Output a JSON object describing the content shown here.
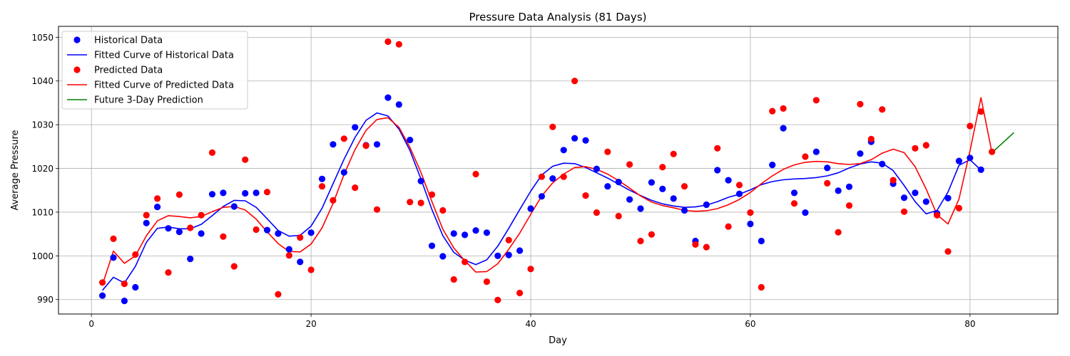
{
  "chart_data": {
    "type": "line",
    "title": "Pressure Data Analysis (81 Days)",
    "xlabel": "Day",
    "ylabel": "Average Pressure",
    "xlim": [
      -3,
      88
    ],
    "ylim": [
      986.7,
      1052.5
    ],
    "xticks": [
      0,
      20,
      40,
      60,
      80
    ],
    "yticks": [
      990,
      1000,
      1010,
      1020,
      1030,
      1040,
      1050
    ],
    "grid": true,
    "legend_position": "top-left",
    "legend": [
      {
        "label": "Historical Data",
        "kind": "marker",
        "color": "#0000ff"
      },
      {
        "label": "Fitted Curve of Historical Data",
        "kind": "line",
        "color": "#0000ff"
      },
      {
        "label": "Predicted Data",
        "kind": "marker",
        "color": "#ff0000"
      },
      {
        "label": "Fitted Curve of Predicted Data",
        "kind": "line",
        "color": "#ff0000"
      },
      {
        "label": "Future 3-Day Prediction",
        "kind": "line",
        "color": "#008000"
      }
    ],
    "series": [
      {
        "name": "Historical Data",
        "kind": "scatter",
        "color": "#0000ff",
        "x": [
          1,
          2,
          3,
          4,
          5,
          6,
          7,
          8,
          9,
          10,
          11,
          12,
          13,
          14,
          15,
          16,
          17,
          18,
          19,
          20,
          21,
          22,
          23,
          24,
          25,
          26,
          27,
          28,
          29,
          30,
          31,
          32,
          33,
          34,
          35,
          36,
          37,
          38,
          39,
          40,
          41,
          42,
          43,
          44,
          45,
          46,
          47,
          48,
          49,
          50,
          51,
          52,
          53,
          54,
          55,
          56,
          57,
          58,
          59,
          60,
          61,
          62,
          63,
          64,
          65,
          66,
          67,
          68,
          69,
          70,
          71,
          72,
          73,
          74,
          75,
          76,
          77,
          78,
          79,
          80,
          81
        ],
        "y": [
          990.9,
          999.6,
          989.7,
          992.8,
          1007.5,
          1011.2,
          1006.3,
          1005.5,
          999.3,
          1005.1,
          1014.1,
          1014.4,
          1011.3,
          1014.3,
          1014.4,
          1005.9,
          1005.1,
          1001.5,
          998.6,
          1005.3,
          1017.6,
          1025.5,
          1019.1,
          1029.4,
          1025.3,
          1025.5,
          1036.2,
          1034.6,
          1026.5,
          1017.1,
          1002.3,
          999.9,
          1005.1,
          1004.8,
          1005.8,
          1005.3,
          1000.0,
          1000.2,
          1001.2,
          1010.8,
          1013.6,
          1017.7,
          1024.2,
          1026.9,
          1026.4,
          1019.9,
          1015.9,
          1016.9,
          1012.9,
          1010.8,
          1016.8,
          1015.3,
          1013.1,
          1010.4,
          1003.4,
          1011.7,
          1019.6,
          1017.3,
          1014.2,
          1007.3,
          1003.4,
          1020.8,
          1029.2,
          1014.4,
          1009.9,
          1023.8,
          1020.1,
          1014.9,
          1015.8,
          1023.4,
          1026.1,
          1021.0,
          1016.5,
          1013.3,
          1014.4,
          1012.4,
          1009.7,
          1013.2,
          1021.7,
          1022.4,
          1019.7
        ]
      },
      {
        "name": "Fitted Curve of Historical Data",
        "kind": "line",
        "color": "#0000ff",
        "x": [
          1,
          2,
          3,
          4,
          5,
          6,
          7,
          8,
          9,
          10,
          11,
          12,
          13,
          14,
          15,
          16,
          17,
          18,
          19,
          20,
          21,
          22,
          23,
          24,
          25,
          26,
          27,
          28,
          29,
          30,
          31,
          32,
          33,
          34,
          35,
          36,
          37,
          38,
          39,
          40,
          41,
          42,
          43,
          44,
          45,
          46,
          47,
          48,
          49,
          50,
          51,
          52,
          53,
          54,
          55,
          56,
          57,
          58,
          59,
          60,
          61,
          62,
          63,
          64,
          65,
          66,
          67,
          68,
          69,
          70,
          71,
          72,
          73,
          74,
          75,
          76,
          77,
          78,
          79,
          80,
          81
        ],
        "y": [
          992.1,
          995.1,
          993.8,
          997.6,
          1003.1,
          1006.3,
          1006.6,
          1006.2,
          1006.2,
          1007.2,
          1009.2,
          1011.3,
          1012.7,
          1012.6,
          1011.1,
          1008.5,
          1005.8,
          1004.5,
          1004.7,
          1006.8,
          1010.9,
          1016.5,
          1022.1,
          1027.1,
          1031.0,
          1032.7,
          1032.0,
          1029.0,
          1024.1,
          1017.6,
          1010.6,
          1004.6,
          1000.8,
          999.0,
          998.0,
          999.1,
          1002.2,
          1006.3,
          1010.6,
          1014.8,
          1018.5,
          1020.5,
          1021.2,
          1021.1,
          1020.2,
          1019.0,
          1017.8,
          1016.4,
          1015.0,
          1013.8,
          1012.7,
          1011.9,
          1011.4,
          1011.1,
          1011.2,
          1011.6,
          1012.4,
          1013.4,
          1014.1,
          1015.1,
          1016.3,
          1017.0,
          1017.4,
          1017.6,
          1017.7,
          1017.9,
          1018.3,
          1019.0,
          1020.1,
          1021.0,
          1021.5,
          1021.2,
          1019.5,
          1016.1,
          1012.4,
          1009.6,
          1010.4,
          1014.6,
          1020.7,
          1022.0,
          1019.6
        ]
      },
      {
        "name": "Predicted Data",
        "kind": "scatter",
        "color": "#ff0000",
        "x": [
          1,
          2,
          3,
          4,
          5,
          6,
          7,
          8,
          9,
          10,
          11,
          12,
          13,
          14,
          15,
          16,
          17,
          18,
          19,
          20,
          21,
          22,
          23,
          24,
          25,
          26,
          27,
          28,
          29,
          30,
          31,
          32,
          33,
          34,
          35,
          36,
          37,
          38,
          39,
          40,
          41,
          42,
          43,
          44,
          45,
          46,
          47,
          48,
          49,
          50,
          51,
          52,
          53,
          54,
          55,
          56,
          57,
          58,
          59,
          60,
          61,
          62,
          63,
          64,
          65,
          66,
          67,
          68,
          69,
          70,
          71,
          72,
          73,
          74,
          75,
          76,
          77,
          78,
          79,
          80,
          81,
          82
        ],
        "y": [
          993.9,
          1003.9,
          993.6,
          1000.3,
          1009.3,
          1013.1,
          996.2,
          1014.0,
          1006.4,
          1009.3,
          1023.6,
          1004.4,
          997.6,
          1022.0,
          1006.0,
          1014.6,
          991.2,
          1000.1,
          1004.2,
          996.8,
          1015.9,
          1012.7,
          1026.8,
          1015.6,
          1025.2,
          1010.6,
          1049.0,
          1048.4,
          1012.3,
          1012.1,
          1014.0,
          1010.4,
          994.6,
          998.6,
          1018.7,
          994.1,
          989.9,
          1003.6,
          991.5,
          997.0,
          1018.1,
          1029.5,
          1018.1,
          1040.0,
          1013.8,
          1009.9,
          1023.8,
          1009.1,
          1020.9,
          1003.4,
          1004.9,
          1020.3,
          1023.3,
          1015.9,
          1002.6,
          1002.0,
          1024.6,
          1006.7,
          1016.2,
          1009.9,
          992.8,
          1033.1,
          1033.7,
          1012.0,
          1022.7,
          1035.6,
          1016.6,
          1005.4,
          1011.5,
          1034.7,
          1026.7,
          1033.5,
          1017.3,
          1010.1,
          1024.6,
          1025.3,
          1009.3,
          1001.0,
          1010.9,
          1029.7,
          1033.0,
          1023.8
        ]
      },
      {
        "name": "Fitted Curve of Predicted Data",
        "kind": "line",
        "color": "#ff0000",
        "x": [
          1,
          2,
          3,
          4,
          5,
          6,
          7,
          8,
          9,
          10,
          11,
          12,
          13,
          14,
          15,
          16,
          17,
          18,
          19,
          20,
          21,
          22,
          23,
          24,
          25,
          26,
          27,
          28,
          29,
          30,
          31,
          32,
          33,
          34,
          35,
          36,
          37,
          38,
          39,
          40,
          41,
          42,
          43,
          44,
          45,
          46,
          47,
          48,
          49,
          50,
          51,
          52,
          53,
          54,
          55,
          56,
          57,
          58,
          59,
          60,
          61,
          62,
          63,
          64,
          65,
          66,
          67,
          68,
          69,
          70,
          71,
          72,
          73,
          74,
          75,
          76,
          77,
          78,
          79,
          80,
          81,
          82
        ],
        "y": [
          993.4,
          1001.1,
          998.3,
          1000.0,
          1004.6,
          1008.0,
          1009.2,
          1009.0,
          1008.7,
          1009.0,
          1010.1,
          1011.1,
          1011.3,
          1010.5,
          1008.4,
          1005.5,
          1002.8,
          1001.0,
          1000.9,
          1002.7,
          1006.4,
          1012.0,
          1018.6,
          1024.3,
          1028.7,
          1031.2,
          1031.6,
          1029.4,
          1024.8,
          1019.1,
          1012.4,
          1006.1,
          1001.8,
          998.9,
          996.3,
          996.4,
          998.2,
          1001.5,
          1005.2,
          1009.5,
          1013.7,
          1016.7,
          1018.7,
          1020.2,
          1020.4,
          1019.8,
          1018.7,
          1017.2,
          1015.5,
          1013.7,
          1012.3,
          1011.5,
          1011.0,
          1010.4,
          1010.2,
          1010.3,
          1010.8,
          1011.7,
          1012.9,
          1014.5,
          1016.5,
          1018.3,
          1019.8,
          1020.8,
          1021.4,
          1021.6,
          1021.5,
          1021.1,
          1020.9,
          1021.1,
          1022.0,
          1023.5,
          1024.4,
          1023.6,
          1020.4,
          1015.3,
          1009.4,
          1007.3,
          1013.0,
          1024.0,
          1036.2,
          1023.6
        ]
      },
      {
        "name": "Future 3-Day Prediction",
        "kind": "line",
        "color": "#008000",
        "x": [
          82,
          83,
          84
        ],
        "y": [
          1023.6,
          1025.9,
          1028.2
        ]
      }
    ]
  }
}
